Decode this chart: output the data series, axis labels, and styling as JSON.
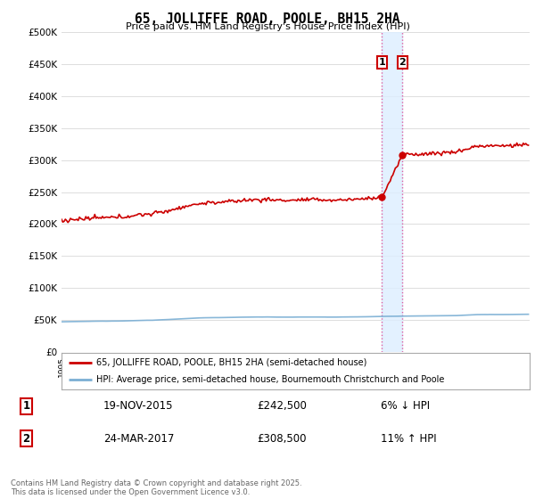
{
  "title": "65, JOLLIFFE ROAD, POOLE, BH15 2HA",
  "subtitle": "Price paid vs. HM Land Registry's House Price Index (HPI)",
  "ylabel_ticks": [
    "£0",
    "£50K",
    "£100K",
    "£150K",
    "£200K",
    "£250K",
    "£300K",
    "£350K",
    "£400K",
    "£450K",
    "£500K"
  ],
  "ytick_values": [
    0,
    50000,
    100000,
    150000,
    200000,
    250000,
    300000,
    350000,
    400000,
    450000,
    500000
  ],
  "ylim": [
    0,
    500000
  ],
  "xlim_start": 1995.0,
  "xlim_end": 2025.5,
  "sale1_date": 2015.88,
  "sale1_price": 242500,
  "sale1_label": "1",
  "sale2_date": 2017.22,
  "sale2_price": 308500,
  "sale2_label": "2",
  "vline_color": "#e060a0",
  "vline_style": ":",
  "highlight_fill": "#ddeeff",
  "legend_house_label": "65, JOLLIFFE ROAD, POOLE, BH15 2HA (semi-detached house)",
  "legend_hpi_label": "HPI: Average price, semi-detached house, Bournemouth Christchurch and Poole",
  "house_line_color": "#cc0000",
  "hpi_line_color": "#7bafd4",
  "table_row1": [
    "1",
    "19-NOV-2015",
    "£242,500",
    "6% ↓ HPI"
  ],
  "table_row2": [
    "2",
    "24-MAR-2017",
    "£308,500",
    "11% ↑ HPI"
  ],
  "footer": "Contains HM Land Registry data © Crown copyright and database right 2025.\nThis data is licensed under the Open Government Licence v3.0.",
  "background_color": "#ffffff",
  "grid_color": "#dddddd"
}
